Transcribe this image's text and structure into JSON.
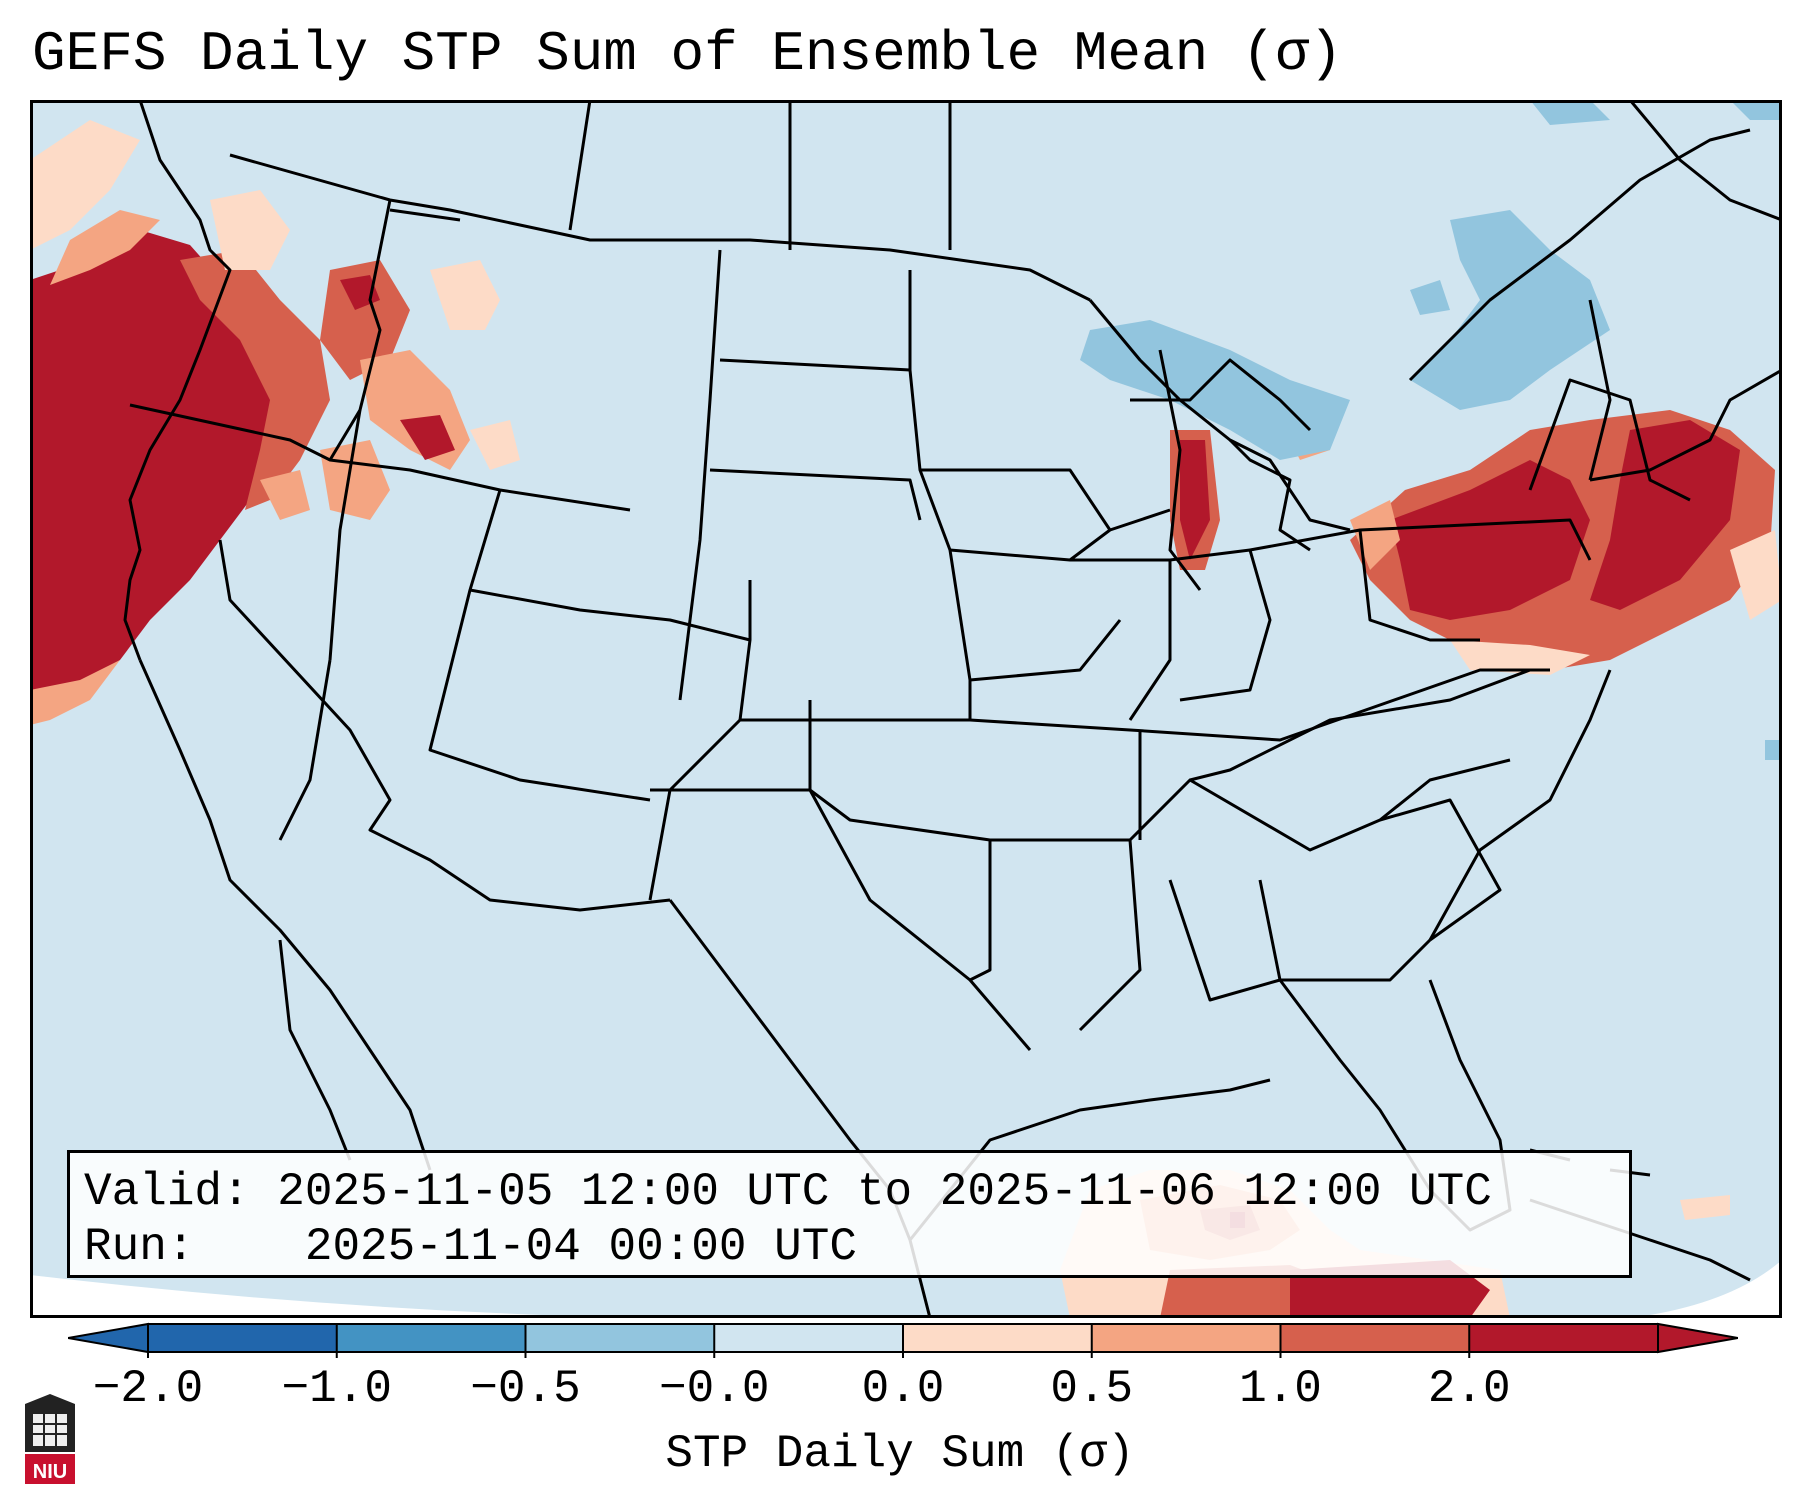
{
  "title": "GEFS Daily STP Sum of Ensemble Mean (σ)",
  "info": {
    "valid_label": "Valid:",
    "valid_value": "2025-11-05 12:00 UTC to 2025-11-06 12:00 UTC",
    "run_label": "Run:",
    "run_value": "2025-11-04 00:00 UTC"
  },
  "colorbar": {
    "label": "STP Daily Sum (σ)",
    "ticks": [
      "−2.0",
      "−1.0",
      "−0.5",
      "−0.0",
      "0.0",
      "0.5",
      "1.0",
      "2.0"
    ],
    "colors": [
      "#2166ac",
      "#4393c3",
      "#92c5de",
      "#d1e5f0",
      "#fddbc7",
      "#f4a582",
      "#d6604d",
      "#b2182b"
    ],
    "extend_low_color": "#2166ac",
    "extend_high_color": "#b2182b"
  },
  "map": {
    "background_color": "#d1e5f0",
    "regions": [
      "pacific-northwest-positive",
      "northeast-positive",
      "lake-michigan-positive",
      "caribbean-positive",
      "great-lakes-negative",
      "quebec-negative"
    ]
  },
  "logo": {
    "text": "NIU",
    "color": "#c8102e"
  }
}
